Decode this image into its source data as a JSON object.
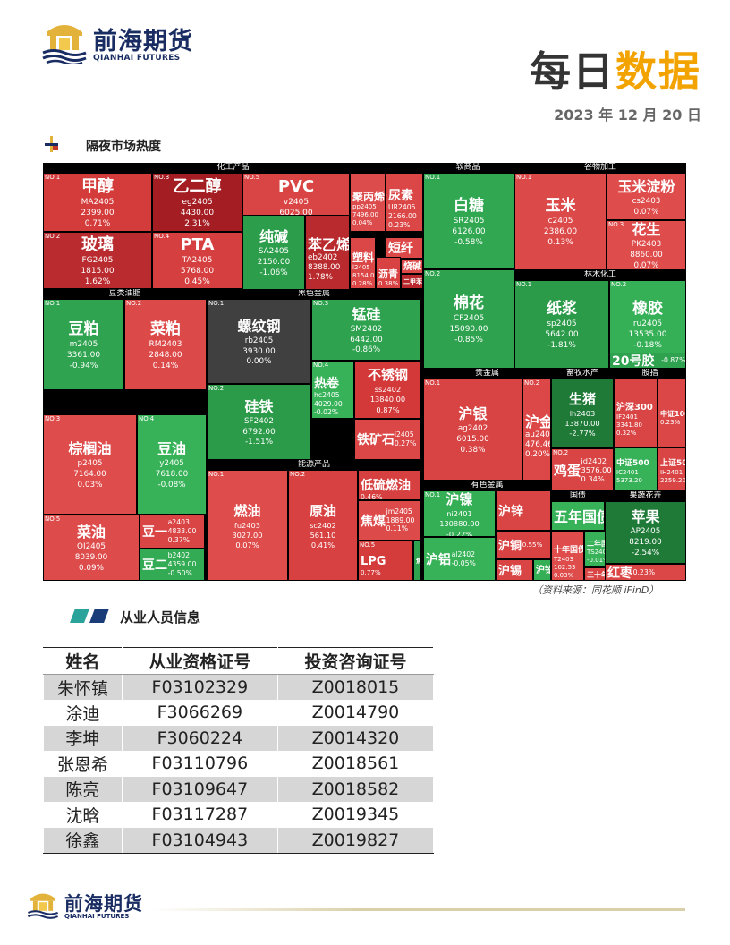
{
  "header": {
    "brand_cn": "前海期货",
    "brand_en": "QIANHAI FUTURES",
    "title_a": "每日",
    "title_b": "数据",
    "date": "2023 年 12 月 20 日"
  },
  "section1": {
    "title": "隔夜市场热度"
  },
  "treemap": {
    "sectors": [
      {
        "name": "化工产品"
      },
      {
        "name": "软商品"
      },
      {
        "name": "谷物加工"
      },
      {
        "name": "林木化工"
      },
      {
        "name": "豆类油脂"
      },
      {
        "name": "黑色金属"
      },
      {
        "name": "贵金属"
      },
      {
        "name": "畜牧水产"
      },
      {
        "name": "股指"
      },
      {
        "name": "能源产品"
      },
      {
        "name": "有色金属"
      },
      {
        "name": "国债"
      },
      {
        "name": "果蔬花卉"
      }
    ],
    "tiles": [
      {
        "no": "NO.1",
        "name": "甲醇",
        "code": "MA2405",
        "price": "2399.00",
        "pct": "0.71%",
        "color": "#d43b3b"
      },
      {
        "no": "NO.3",
        "name": "乙二醇",
        "code": "eg2405",
        "price": "4430.00",
        "pct": "2.31%",
        "color": "#a31d22"
      },
      {
        "no": "NO.5",
        "name": "PVC",
        "code": "v2405",
        "price": "6025.00",
        "pct": "0.32%",
        "color": "#d94545"
      },
      {
        "no": "",
        "name": "聚丙烯",
        "code": "pp2405",
        "price": "7496.00",
        "pct": "0.04%",
        "color": "#dd4c4c"
      },
      {
        "no": "",
        "name": "尿素",
        "code": "UR2405",
        "price": "2166.00",
        "pct": "0.23%",
        "color": "#db4747"
      },
      {
        "no": "",
        "name": "纯碱",
        "code": "SA2405",
        "price": "2150.00",
        "pct": "-1.06%",
        "color": "#2c9e4b"
      },
      {
        "no": "",
        "name": "苯乙烯",
        "code": "eb2402",
        "price": "8388.00",
        "pct": "1.78%",
        "color": "#b82a2d"
      },
      {
        "no": "",
        "name": "塑料",
        "code": "l2405",
        "price": "8154.00",
        "pct": "0.28%",
        "color": "#db4646"
      },
      {
        "no": "",
        "name": "短纤",
        "code": "",
        "price": "",
        "pct": "",
        "color": "#dc4848"
      },
      {
        "no": "",
        "name": "沥青",
        "code": "",
        "price": "",
        "pct": "0.38%",
        "color": "#d84242"
      },
      {
        "no": "",
        "name": "烧碱",
        "code": "",
        "price": "",
        "pct": "",
        "color": "#dc4a4a"
      },
      {
        "no": "",
        "name": "二甲苯",
        "code": "",
        "price": "",
        "pct": "",
        "color": "#b8282c"
      },
      {
        "no": "NO.2",
        "name": "玻璃",
        "code": "FG2405",
        "price": "1815.00",
        "pct": "1.62%",
        "color": "#b92b2e"
      },
      {
        "no": "NO.4",
        "name": "PTA",
        "code": "TA2405",
        "price": "5768.00",
        "pct": "0.45%",
        "color": "#d63f3f"
      },
      {
        "no": "NO.1",
        "name": "白糖",
        "code": "SR2405",
        "price": "6126.00",
        "pct": "-0.58%",
        "color": "#31a752"
      },
      {
        "no": "NO.2",
        "name": "棉花",
        "code": "CF2405",
        "price": "15090.00",
        "pct": "-0.85%",
        "color": "#2ea24e"
      },
      {
        "no": "NO.1",
        "name": "玉米",
        "code": "c2405",
        "price": "2386.00",
        "pct": "0.13%",
        "color": "#dc4949"
      },
      {
        "no": "",
        "name": "玉米淀粉",
        "code": "cs2403",
        "price": "",
        "pct": "0.07%",
        "color": "#de4c4c"
      },
      {
        "no": "NO.3",
        "name": "花生",
        "code": "PK2403",
        "price": "8860.00",
        "pct": "0.07%",
        "color": "#de4c4c"
      },
      {
        "no": "NO.1",
        "name": "纸浆",
        "code": "sp2405",
        "price": "5642.00",
        "pct": "-1.81%",
        "color": "#2b9a49"
      },
      {
        "no": "NO.2",
        "name": "橡胶",
        "code": "ru2405",
        "price": "13535.00",
        "pct": "-0.18%",
        "color": "#35b056"
      },
      {
        "no": "",
        "name": "20号胶",
        "code": "",
        "price": "",
        "pct": "-0.87%",
        "color": "#2ea24e"
      },
      {
        "no": "NO.1",
        "name": "豆粕",
        "code": "m2405",
        "price": "3361.00",
        "pct": "-0.94%",
        "color": "#2fa34f"
      },
      {
        "no": "NO.2",
        "name": "菜粕",
        "code": "RM2403",
        "price": "2848.00",
        "pct": "0.14%",
        "color": "#dc4949"
      },
      {
        "no": "NO.3",
        "name": "棕榈油",
        "code": "p2405",
        "price": "7164.00",
        "pct": "0.03%",
        "color": "#de4c4c"
      },
      {
        "no": "NO.4",
        "name": "豆油",
        "code": "y2405",
        "price": "7618.00",
        "pct": "-0.08%",
        "color": "#37b258"
      },
      {
        "no": "NO.5",
        "name": "菜油",
        "code": "OI2405",
        "price": "8039.00",
        "pct": "0.09%",
        "color": "#dd4b4b"
      },
      {
        "no": "",
        "name": "豆一",
        "code": "a2403",
        "price": "4833.00",
        "pct": "0.37%",
        "color": "#d94444"
      },
      {
        "no": "",
        "name": "豆二",
        "code": "b2402",
        "price": "4359.00",
        "pct": "-0.50%",
        "color": "#33ab54"
      },
      {
        "no": "NO.1",
        "name": "螺纹钢",
        "code": "rb2405",
        "price": "3930.00",
        "pct": "0.00%",
        "color": "#404040"
      },
      {
        "no": "NO.3",
        "name": "锰硅",
        "code": "SM2402",
        "price": "6442.00",
        "pct": "-0.86%",
        "color": "#2ea24e"
      },
      {
        "no": "NO.4",
        "name": "热卷",
        "code": "hc2405",
        "price": "4029.00",
        "pct": "-0.02%",
        "color": "#37b258"
      },
      {
        "no": "",
        "name": "不锈钢",
        "code": "ss2402",
        "price": "13840.00",
        "pct": "0.87%",
        "color": "#d43939"
      },
      {
        "no": "",
        "name": "铁矿石",
        "code": "i2405",
        "price": "",
        "pct": "0.27%",
        "color": "#db4646"
      },
      {
        "no": "NO.2",
        "name": "硅铁",
        "code": "SF2402",
        "price": "6792.00",
        "pct": "-1.51%",
        "color": "#2b9a49"
      },
      {
        "no": "NO.1",
        "name": "沪银",
        "code": "ag2402",
        "price": "6015.00",
        "pct": "0.38%",
        "color": "#d84343"
      },
      {
        "no": "NO.2",
        "name": "沪金",
        "code": "au2402",
        "price": "476.46",
        "pct": "0.20%",
        "color": "#dc4848"
      },
      {
        "no": "",
        "name": "生猪",
        "code": "lh2403",
        "price": "13870.00",
        "pct": "-2.77%",
        "color": "#1f7a38"
      },
      {
        "no": "NO.2",
        "name": "鸡蛋",
        "code": "jd2402",
        "price": "3576.00",
        "pct": "0.34%",
        "color": "#d94545"
      },
      {
        "no": "",
        "name": "沪深300",
        "code": "IF2401",
        "price": "3341.80",
        "pct": "0.32%",
        "color": "#d94545"
      },
      {
        "no": "",
        "name": "中证1000",
        "code": "",
        "price": "",
        "pct": "0.23%",
        "color": "#db4747"
      },
      {
        "no": "",
        "name": "中证500",
        "code": "IC2401",
        "price": "5373.20",
        "pct": "-0.12%",
        "color": "#37b258"
      },
      {
        "no": "",
        "name": "上证50",
        "code": "IH2401",
        "price": "2259.20",
        "pct": "0.33%",
        "color": "#d94545"
      },
      {
        "no": "NO.1",
        "name": "燃油",
        "code": "fu2403",
        "price": "3027.00",
        "pct": "0.07%",
        "color": "#de4c4c"
      },
      {
        "no": "NO.2",
        "name": "原油",
        "code": "sc2402",
        "price": "561.10",
        "pct": "0.41%",
        "color": "#d74141"
      },
      {
        "no": "",
        "name": "低硫燃油",
        "code": "",
        "price": "",
        "pct": "0.46%",
        "color": "#d64040"
      },
      {
        "no": "",
        "name": "焦煤",
        "code": "jm2405",
        "price": "1889.00",
        "pct": "0.11%",
        "color": "#dd4a4a"
      },
      {
        "no": "NO.5",
        "name": "LPG",
        "code": "",
        "price": "",
        "pct": "0.77%",
        "color": "#d43b3b"
      },
      {
        "no": "",
        "name": "焦炭",
        "code": "",
        "price": "",
        "pct": "",
        "color": "#2ea24e"
      },
      {
        "no": "NO.1",
        "name": "沪镍",
        "code": "ni2401",
        "price": "130880.00",
        "pct": "-0.22%",
        "color": "#35af55"
      },
      {
        "no": "",
        "name": "沪锌",
        "code": "",
        "price": "",
        "pct": "",
        "color": "#d94545"
      },
      {
        "no": "",
        "name": "沪铜",
        "code": "",
        "price": "",
        "pct": "0.55%",
        "color": "#d84242"
      },
      {
        "no": "",
        "name": "沪铝",
        "code": "al2402",
        "price": "",
        "pct": "-0.05%",
        "color": "#37b258"
      },
      {
        "no": "",
        "name": "沪锡",
        "code": "",
        "price": "",
        "pct": "0.50%",
        "color": "#d94545"
      },
      {
        "no": "",
        "name": "沪铅",
        "code": "",
        "price": "",
        "pct": "",
        "color": "#35af55"
      },
      {
        "no": "",
        "name": "五年国债",
        "code": "",
        "price": "",
        "pct": "",
        "color": "#37b258"
      },
      {
        "no": "",
        "name": "十年国债",
        "code": "T2403",
        "price": "102.53",
        "pct": "0.03%",
        "color": "#de4c4c"
      },
      {
        "no": "",
        "name": "二年国债",
        "code": "TS2403",
        "price": "",
        "pct": "-0.01%",
        "color": "#37b258"
      },
      {
        "no": "",
        "name": "三十年国债",
        "code": "",
        "price": "",
        "pct": "",
        "color": "#d94545"
      },
      {
        "no": "",
        "name": "苹果",
        "code": "AP2405",
        "price": "8219.00",
        "pct": "-2.54%",
        "color": "#1f7a38"
      },
      {
        "no": "",
        "name": "红枣",
        "code": "",
        "price": "",
        "pct": "0.23%",
        "color": "#db4747"
      }
    ]
  },
  "source": "（资料来源：同花顺 iFinD）",
  "section2": {
    "title": "从业人员信息"
  },
  "staff": {
    "headers": [
      "姓名",
      "从业资格证号",
      "投资咨询证号"
    ],
    "rows": [
      [
        "朱怀镇",
        "F03102329",
        "Z0018015"
      ],
      [
        "涂迪",
        "F3066269",
        "Z0014790"
      ],
      [
        "李坤",
        "F3060224",
        "Z0014320"
      ],
      [
        "张恩希",
        "F03110796",
        "Z0018561"
      ],
      [
        "陈亮",
        "F03109647",
        "Z0018582"
      ],
      [
        "沈晗",
        "F03117287",
        "Z0019345"
      ],
      [
        "徐鑫",
        "F03104943",
        "Z0019827"
      ]
    ]
  },
  "footer": {
    "brand_cn": "前海期货",
    "brand_en": "QIANHAI FUTURES"
  }
}
